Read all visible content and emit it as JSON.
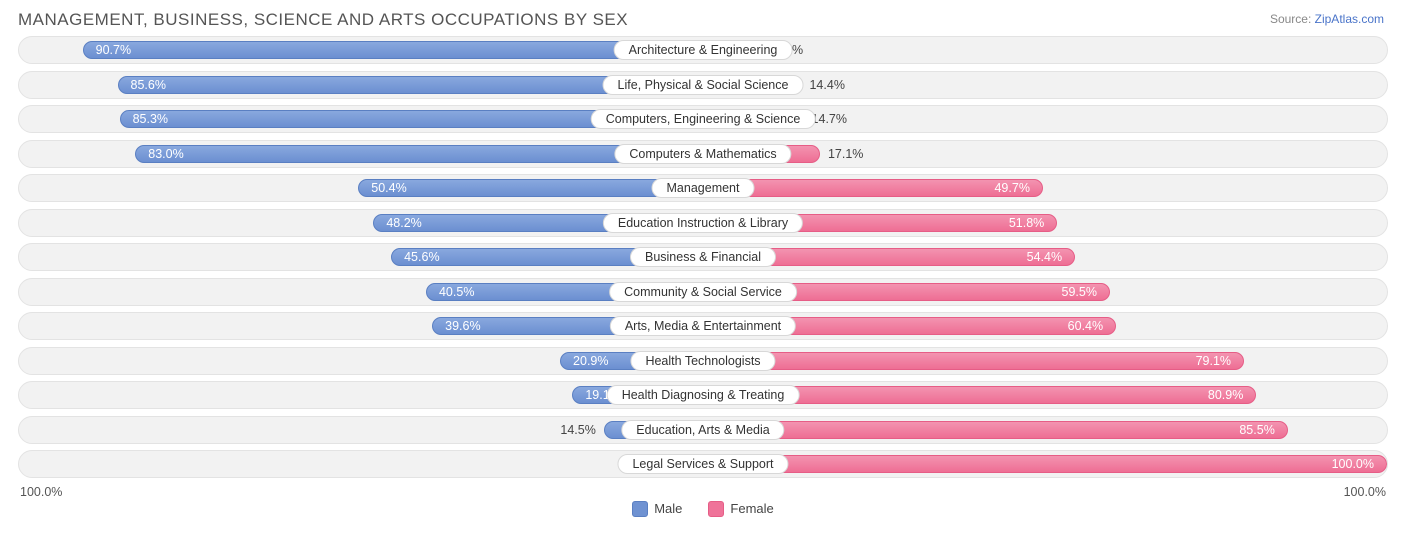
{
  "title": "MANAGEMENT, BUSINESS, SCIENCE AND ARTS OCCUPATIONS BY SEX",
  "source_prefix": "Source: ",
  "source_link": "ZipAtlas.com",
  "axis_left": "100.0%",
  "axis_right": "100.0%",
  "legend": {
    "male": "Male",
    "female": "Female"
  },
  "chart": {
    "type": "diverging-bar",
    "male_color": "#6f92d2",
    "female_color": "#ef7399",
    "track_bg": "#f2f2f2",
    "track_border": "#e3e3e3",
    "pill_bg": "#ffffff",
    "pill_border": "#d8d8d8",
    "label_fontsize": 12.5,
    "title_fontsize": 17,
    "inside_threshold": 18,
    "rows": [
      {
        "label": "Architecture & Engineering",
        "male": 90.7,
        "female": 9.3
      },
      {
        "label": "Life, Physical & Social Science",
        "male": 85.6,
        "female": 14.4
      },
      {
        "label": "Computers, Engineering & Science",
        "male": 85.3,
        "female": 14.7
      },
      {
        "label": "Computers & Mathematics",
        "male": 83.0,
        "female": 17.1
      },
      {
        "label": "Management",
        "male": 50.4,
        "female": 49.7
      },
      {
        "label": "Education Instruction & Library",
        "male": 48.2,
        "female": 51.8
      },
      {
        "label": "Business & Financial",
        "male": 45.6,
        "female": 54.4
      },
      {
        "label": "Community & Social Service",
        "male": 40.5,
        "female": 59.5
      },
      {
        "label": "Arts, Media & Entertainment",
        "male": 39.6,
        "female": 60.4
      },
      {
        "label": "Health Technologists",
        "male": 20.9,
        "female": 79.1
      },
      {
        "label": "Health Diagnosing & Treating",
        "male": 19.1,
        "female": 80.9
      },
      {
        "label": "Education, Arts & Media",
        "male": 14.5,
        "female": 85.5
      },
      {
        "label": "Legal Services & Support",
        "male": 0.0,
        "female": 100.0
      }
    ]
  }
}
